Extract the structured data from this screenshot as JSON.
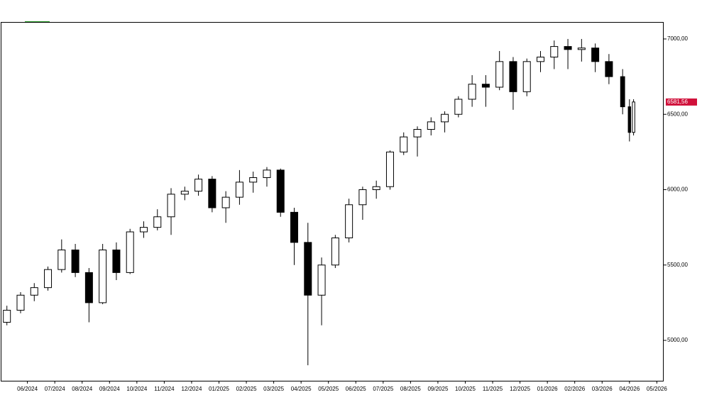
{
  "chart_data": {
    "type": "candlestick",
    "x": [
      5.25,
      5.75,
      6.25,
      6.75,
      7.25,
      7.75,
      8.25,
      8.75,
      9.25,
      9.75,
      10.25,
      10.75,
      11.25,
      11.75,
      12.25,
      12.75,
      13.25,
      13.75,
      14.25,
      14.75,
      15.25,
      15.75,
      16.25,
      16.75,
      17.25,
      17.75,
      18.25,
      18.75,
      19.25,
      19.75,
      20.25,
      20.75,
      21.25,
      21.75,
      22.25,
      22.75,
      23.25,
      23.75,
      24.25,
      24.75,
      25.25,
      25.75,
      26.25,
      26.75,
      27.25,
      27.75,
      28.0,
      28.15
    ],
    "open": [
      5120,
      5200,
      5300,
      5350,
      5470,
      5600,
      5450,
      5250,
      5600,
      5450,
      5720,
      5750,
      5820,
      5970,
      5990,
      6070,
      5880,
      5950,
      6050,
      6080,
      6130,
      5850,
      5650,
      5300,
      5500,
      5680,
      5900,
      6000,
      6020,
      6250,
      6350,
      6400,
      6450,
      6500,
      6600,
      6700,
      6680,
      6850,
      6650,
      6850,
      6880,
      6950,
      6930,
      6940,
      6850,
      6750,
      6550,
      6380
    ],
    "high": [
      5230,
      5320,
      5380,
      5490,
      5670,
      5640,
      5480,
      5640,
      5650,
      5740,
      5790,
      5870,
      6010,
      6020,
      6100,
      6090,
      5990,
      6130,
      6120,
      6150,
      6140,
      5880,
      5780,
      5550,
      5700,
      5940,
      6020,
      6060,
      6260,
      6380,
      6420,
      6480,
      6520,
      6620,
      6760,
      6760,
      6920,
      6880,
      6870,
      6920,
      6990,
      7000,
      7000,
      6970,
      6900,
      6800,
      6600,
      6600
    ],
    "low": [
      5100,
      5180,
      5260,
      5330,
      5450,
      5420,
      5120,
      5240,
      5400,
      5440,
      5680,
      5730,
      5700,
      5930,
      5960,
      5850,
      5780,
      5900,
      5980,
      6020,
      5820,
      5500,
      4835,
      5100,
      5480,
      5650,
      5800,
      5940,
      6000,
      6230,
      6220,
      6360,
      6380,
      6480,
      6550,
      6550,
      6660,
      6530,
      6620,
      6780,
      6800,
      6800,
      6850,
      6780,
      6700,
      6500,
      6320,
      6360
    ],
    "close": [
      5200,
      5300,
      5350,
      5470,
      5600,
      5450,
      5250,
      5600,
      5450,
      5720,
      5750,
      5820,
      5970,
      5990,
      6070,
      5880,
      5950,
      6050,
      6080,
      6130,
      5850,
      5650,
      5300,
      5500,
      5680,
      5900,
      6000,
      6020,
      6250,
      6350,
      6400,
      6450,
      6500,
      6600,
      6700,
      6680,
      6850,
      6650,
      6850,
      6880,
      6950,
      6930,
      6940,
      6850,
      6750,
      6550,
      6380,
      6582
    ],
    "up_color": "#ffffff",
    "down_color": "#000000",
    "edge_color": "#000000",
    "xlim": [
      5.05,
      29.25
    ],
    "xticks": [
      {
        "value": 6,
        "label": "06/2024"
      },
      {
        "value": 7,
        "label": "07/2024"
      },
      {
        "value": 8,
        "label": "08/2024"
      },
      {
        "value": 9,
        "label": "09/2024"
      },
      {
        "value": 10,
        "label": "10/2024"
      },
      {
        "value": 11,
        "label": "11/2024"
      },
      {
        "value": 12,
        "label": "12/2024"
      },
      {
        "value": 13,
        "label": "01/2025"
      },
      {
        "value": 14,
        "label": "02/2025"
      },
      {
        "value": 15,
        "label": "03/2025"
      },
      {
        "value": 16,
        "label": "04/2025"
      },
      {
        "value": 17,
        "label": "05/2025"
      },
      {
        "value": 18,
        "label": "06/2025"
      },
      {
        "value": 19,
        "label": "07/2025"
      },
      {
        "value": 20,
        "label": "08/2025"
      },
      {
        "value": 21,
        "label": "09/2025"
      },
      {
        "value": 22,
        "label": "10/2025"
      },
      {
        "value": 23,
        "label": "11/2025"
      },
      {
        "value": 24,
        "label": "12/2025"
      },
      {
        "value": 25,
        "label": "01/2026"
      },
      {
        "value": 26,
        "label": "02/2026"
      },
      {
        "value": 27,
        "label": "03/2026"
      },
      {
        "value": 28,
        "label": "04/2026"
      },
      {
        "value": 29,
        "label": "05/2026"
      }
    ],
    "ylim": [
      4732,
      7108
    ],
    "yticks": [
      {
        "value": 5000,
        "label": "5000,00"
      },
      {
        "value": 5500,
        "label": "5500,00"
      },
      {
        "value": 6000,
        "label": "6000,00"
      },
      {
        "value": 6500,
        "label": "6500,00"
      },
      {
        "value": 7000,
        "label": "7000,00"
      }
    ],
    "last_price": {
      "value": 6581.56,
      "label": "6581,56"
    },
    "last_price_color": "#d0103a"
  }
}
